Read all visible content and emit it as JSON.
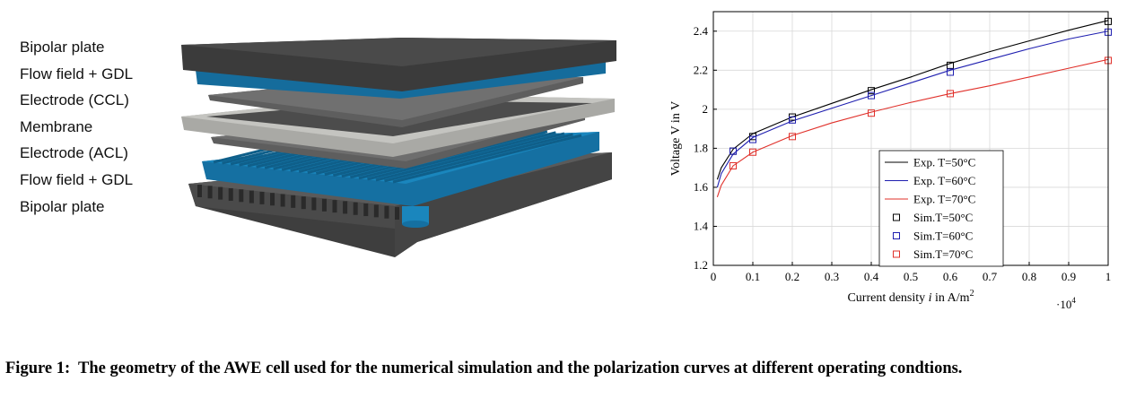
{
  "layers": [
    "Bipolar plate",
    "Flow field + GDL",
    "Electrode (CCL)",
    "Membrane",
    "Electrode (ACL)",
    "Flow field + GDL",
    "Bipolar plate"
  ],
  "caption": {
    "label": "Figure 1:",
    "text": "The geometry of the AWE cell used for the numerical simulation and the polarization curves at different operating condtions."
  },
  "colors": {
    "plate": "#4a4a4a",
    "flow_field": "#1a7fb4",
    "electrode": "#666666",
    "membrane": "#b8b8b4",
    "exp50": "#000000",
    "exp60": "#1f1fb0",
    "exp70": "#e0302a"
  },
  "chart_data": {
    "type": "line",
    "xlabel_prefix": "Current density ",
    "xlabel_var": "i",
    "xlabel_unit": " in A/m",
    "xlabel_sup": "2",
    "x_multiplier": "·10",
    "x_multiplier_exp": "4",
    "ylabel": "Voltage V in V",
    "xlim": [
      0,
      1
    ],
    "ylim": [
      1.2,
      2.5
    ],
    "xticks": [
      0,
      0.1,
      0.2,
      0.3,
      0.4,
      0.5,
      0.6,
      0.7,
      0.8,
      0.9,
      1
    ],
    "yticks": [
      1.2,
      1.4,
      1.6,
      1.8,
      2,
      2.2,
      2.4
    ],
    "grid": true,
    "legend_position": "bottom-center",
    "series": [
      {
        "name": "Exp.  T=50°C",
        "kind": "line",
        "color": "#000000",
        "x": [
          0.01,
          0.02,
          0.05,
          0.1,
          0.2,
          0.3,
          0.4,
          0.5,
          0.6,
          0.7,
          0.8,
          0.9,
          1.0
        ],
        "y": [
          1.64,
          1.7,
          1.795,
          1.875,
          1.96,
          2.03,
          2.1,
          2.165,
          2.235,
          2.295,
          2.35,
          2.405,
          2.455
        ]
      },
      {
        "name": "Exp.  T=60°C",
        "kind": "line",
        "color": "#1f1fb0",
        "x": [
          0.01,
          0.02,
          0.05,
          0.1,
          0.2,
          0.3,
          0.4,
          0.5,
          0.6,
          0.7,
          0.8,
          0.9,
          1.0
        ],
        "y": [
          1.6,
          1.67,
          1.77,
          1.855,
          1.94,
          2.005,
          2.07,
          2.135,
          2.2,
          2.255,
          2.31,
          2.36,
          2.4
        ]
      },
      {
        "name": "Exp.  T=70°C",
        "kind": "line",
        "color": "#e0302a",
        "x": [
          0.01,
          0.02,
          0.05,
          0.1,
          0.2,
          0.3,
          0.4,
          0.5,
          0.6,
          0.7,
          0.8,
          0.9,
          1.0
        ],
        "y": [
          1.55,
          1.61,
          1.71,
          1.78,
          1.865,
          1.93,
          1.985,
          2.035,
          2.08,
          2.12,
          2.165,
          2.21,
          2.255
        ]
      },
      {
        "name": "Sim.T=50°C",
        "kind": "marker",
        "color": "#000000",
        "x": [
          0.05,
          0.1,
          0.2,
          0.4,
          0.6,
          1.0
        ],
        "y": [
          1.785,
          1.86,
          1.96,
          2.095,
          2.225,
          2.45
        ]
      },
      {
        "name": "Sim.T=60°C",
        "kind": "marker",
        "color": "#1f1fb0",
        "x": [
          0.05,
          0.1,
          0.2,
          0.4,
          0.6,
          1.0
        ],
        "y": [
          1.785,
          1.845,
          1.945,
          2.07,
          2.19,
          2.395
        ]
      },
      {
        "name": "Sim.T=70°C",
        "kind": "marker",
        "color": "#e0302a",
        "x": [
          0.05,
          0.1,
          0.2,
          0.4,
          0.6,
          1.0
        ],
        "y": [
          1.71,
          1.78,
          1.86,
          1.98,
          2.08,
          2.25
        ]
      }
    ]
  }
}
